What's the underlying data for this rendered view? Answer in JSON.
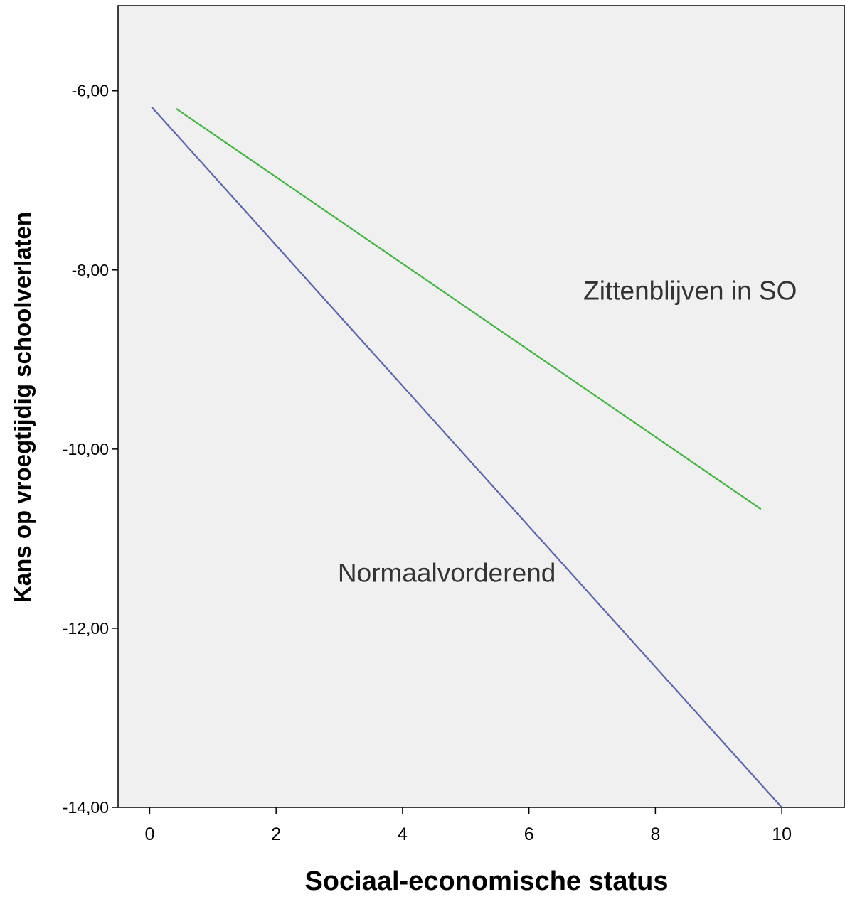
{
  "chart_data": {
    "type": "line",
    "title": "",
    "xlabel": "Sociaal-economische status",
    "ylabel": "Kans op vroegtijdig schoolverlaten",
    "xlim": [
      -0.5,
      11
    ],
    "ylim": [
      -14,
      -5.05
    ],
    "x_ticks": [
      0,
      2,
      4,
      6,
      8,
      10
    ],
    "x_tick_labels": [
      "0",
      "2",
      "4",
      "6",
      "8",
      "10"
    ],
    "y_ticks": [
      -6,
      -8,
      -10,
      -12,
      -14
    ],
    "y_tick_labels": [
      "-6,00",
      "-8,00",
      "-10,00",
      "-12,00",
      "-14,00"
    ],
    "grid": false,
    "legend": "none",
    "plot_background": "#f0f0f0",
    "series": [
      {
        "name": "Normaalvorderend",
        "color": "#5a64b5",
        "x": [
          0.03,
          10.0
        ],
        "y": [
          -6.18,
          -14.0
        ],
        "label_at": [
          4.7,
          -11.48
        ]
      },
      {
        "name": "Zittenblijven in SO",
        "color": "#3cb83c",
        "x": [
          0.42,
          9.67
        ],
        "y": [
          -6.2,
          -10.67
        ],
        "label_at": [
          8.55,
          -8.33
        ]
      }
    ]
  }
}
